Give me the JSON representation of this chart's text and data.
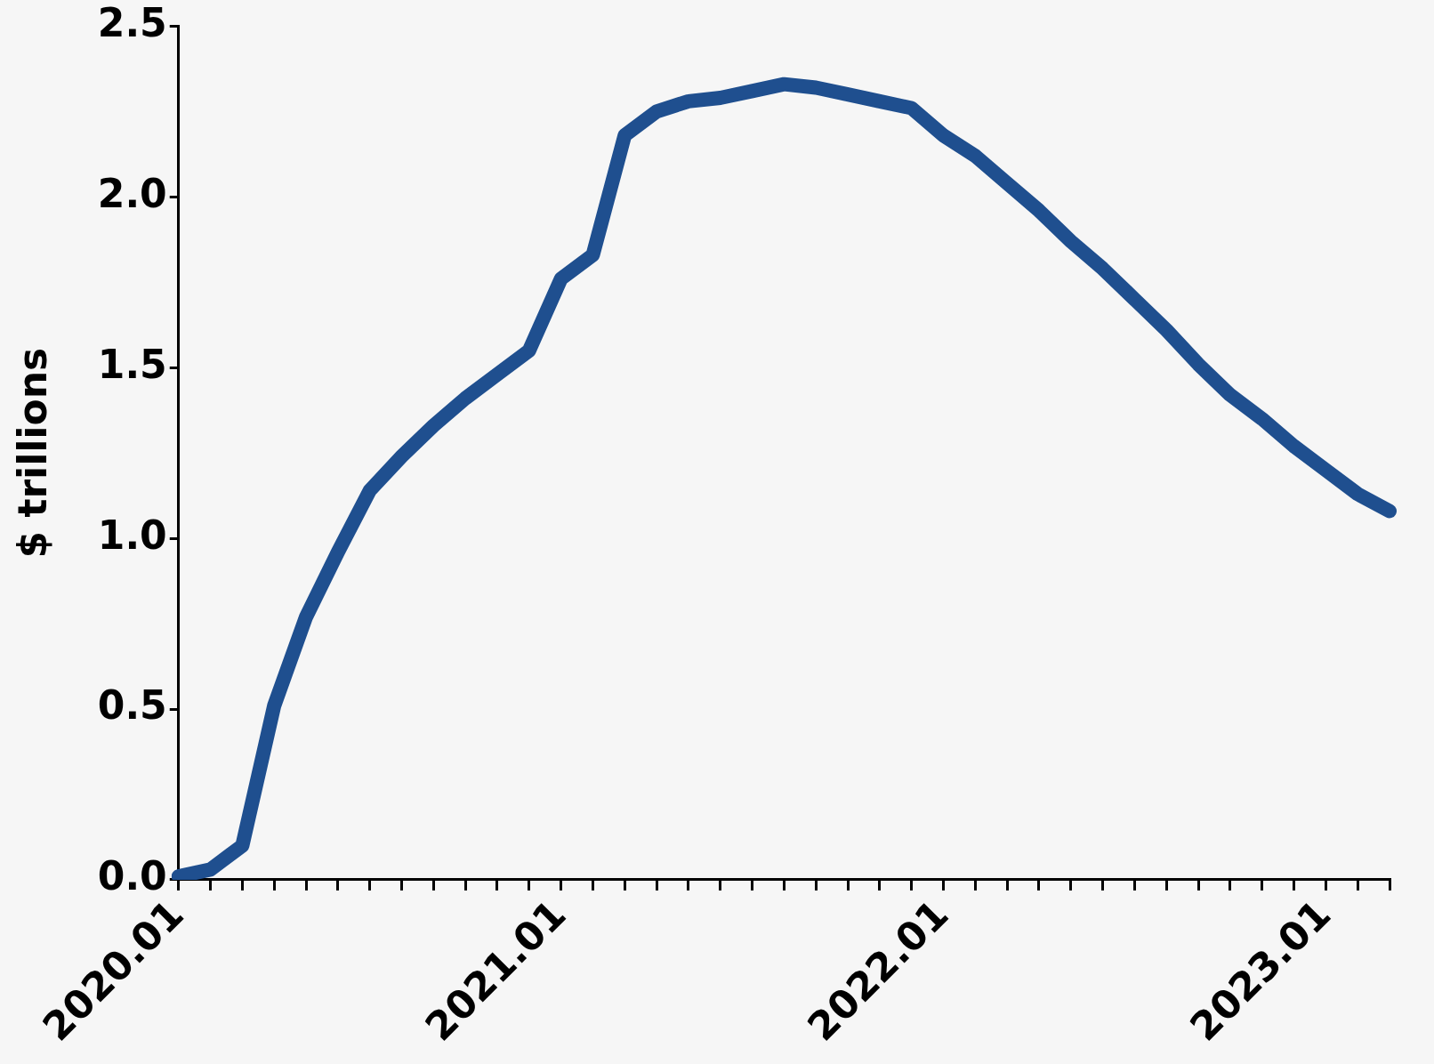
{
  "chart_data": {
    "type": "line",
    "ylabel": "$ trillions",
    "categories": [
      "2020.01",
      null,
      null,
      null,
      null,
      null,
      null,
      null,
      null,
      null,
      null,
      null,
      "2021.01",
      null,
      null,
      null,
      null,
      null,
      null,
      null,
      null,
      null,
      null,
      null,
      "2022.01",
      null,
      null,
      null,
      null,
      null,
      null,
      null,
      null,
      null,
      null,
      null,
      "2023.01",
      null,
      null
    ],
    "series": [
      {
        "color": "#1f4f8f",
        "values": [
          0.01,
          0.03,
          0.1,
          0.51,
          0.77,
          0.96,
          1.14,
          1.24,
          1.33,
          1.41,
          1.48,
          1.55,
          1.76,
          1.83,
          2.18,
          2.25,
          2.28,
          2.29,
          2.31,
          2.33,
          2.32,
          2.3,
          2.28,
          2.26,
          2.18,
          2.12,
          2.04,
          1.96,
          1.87,
          1.79,
          1.7,
          1.61,
          1.51,
          1.42,
          1.35,
          1.27,
          1.2,
          1.13,
          1.08
        ]
      }
    ],
    "ylim": [
      0,
      2.5
    ],
    "yticks": [
      {
        "value": 0,
        "label": "0.0"
      },
      {
        "value": 0.5,
        "label": "0.5"
      },
      {
        "value": 1,
        "label": "1.0"
      },
      {
        "value": 1.5,
        "label": "1.5"
      },
      {
        "value": 2,
        "label": "2.0"
      },
      {
        "value": 2.5,
        "label": "2.5"
      }
    ],
    "grid": false,
    "legend": false,
    "marker": "none",
    "line_style": "solid"
  }
}
